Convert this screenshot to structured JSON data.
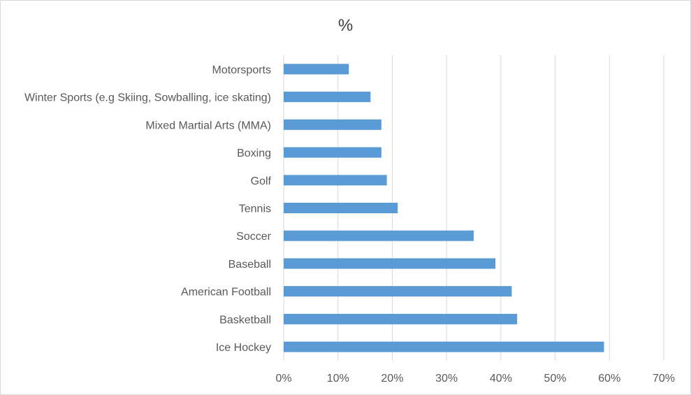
{
  "chart_data": {
    "type": "bar",
    "orientation": "horizontal",
    "title": "%",
    "categories": [
      "Motorsports",
      "Winter Sports (e.g Skiing, Sowballing, ice skating)",
      "Mixed Martial Arts (MMA)",
      "Boxing",
      "Golf",
      "Tennis",
      "Soccer",
      "Baseball",
      "American Football",
      "Basketball",
      "Ice Hockey"
    ],
    "values": [
      0.12,
      0.16,
      0.18,
      0.18,
      0.19,
      0.21,
      0.35,
      0.39,
      0.42,
      0.43,
      0.59
    ],
    "xlim": [
      0,
      0.7
    ],
    "xticks": [
      "0%",
      "10%",
      "20%",
      "30%",
      "40%",
      "50%",
      "60%",
      "70%"
    ],
    "grid": "vertical",
    "legend": "none",
    "bar_color": "#5b9bd5",
    "grid_color": "#d9d9d9"
  }
}
